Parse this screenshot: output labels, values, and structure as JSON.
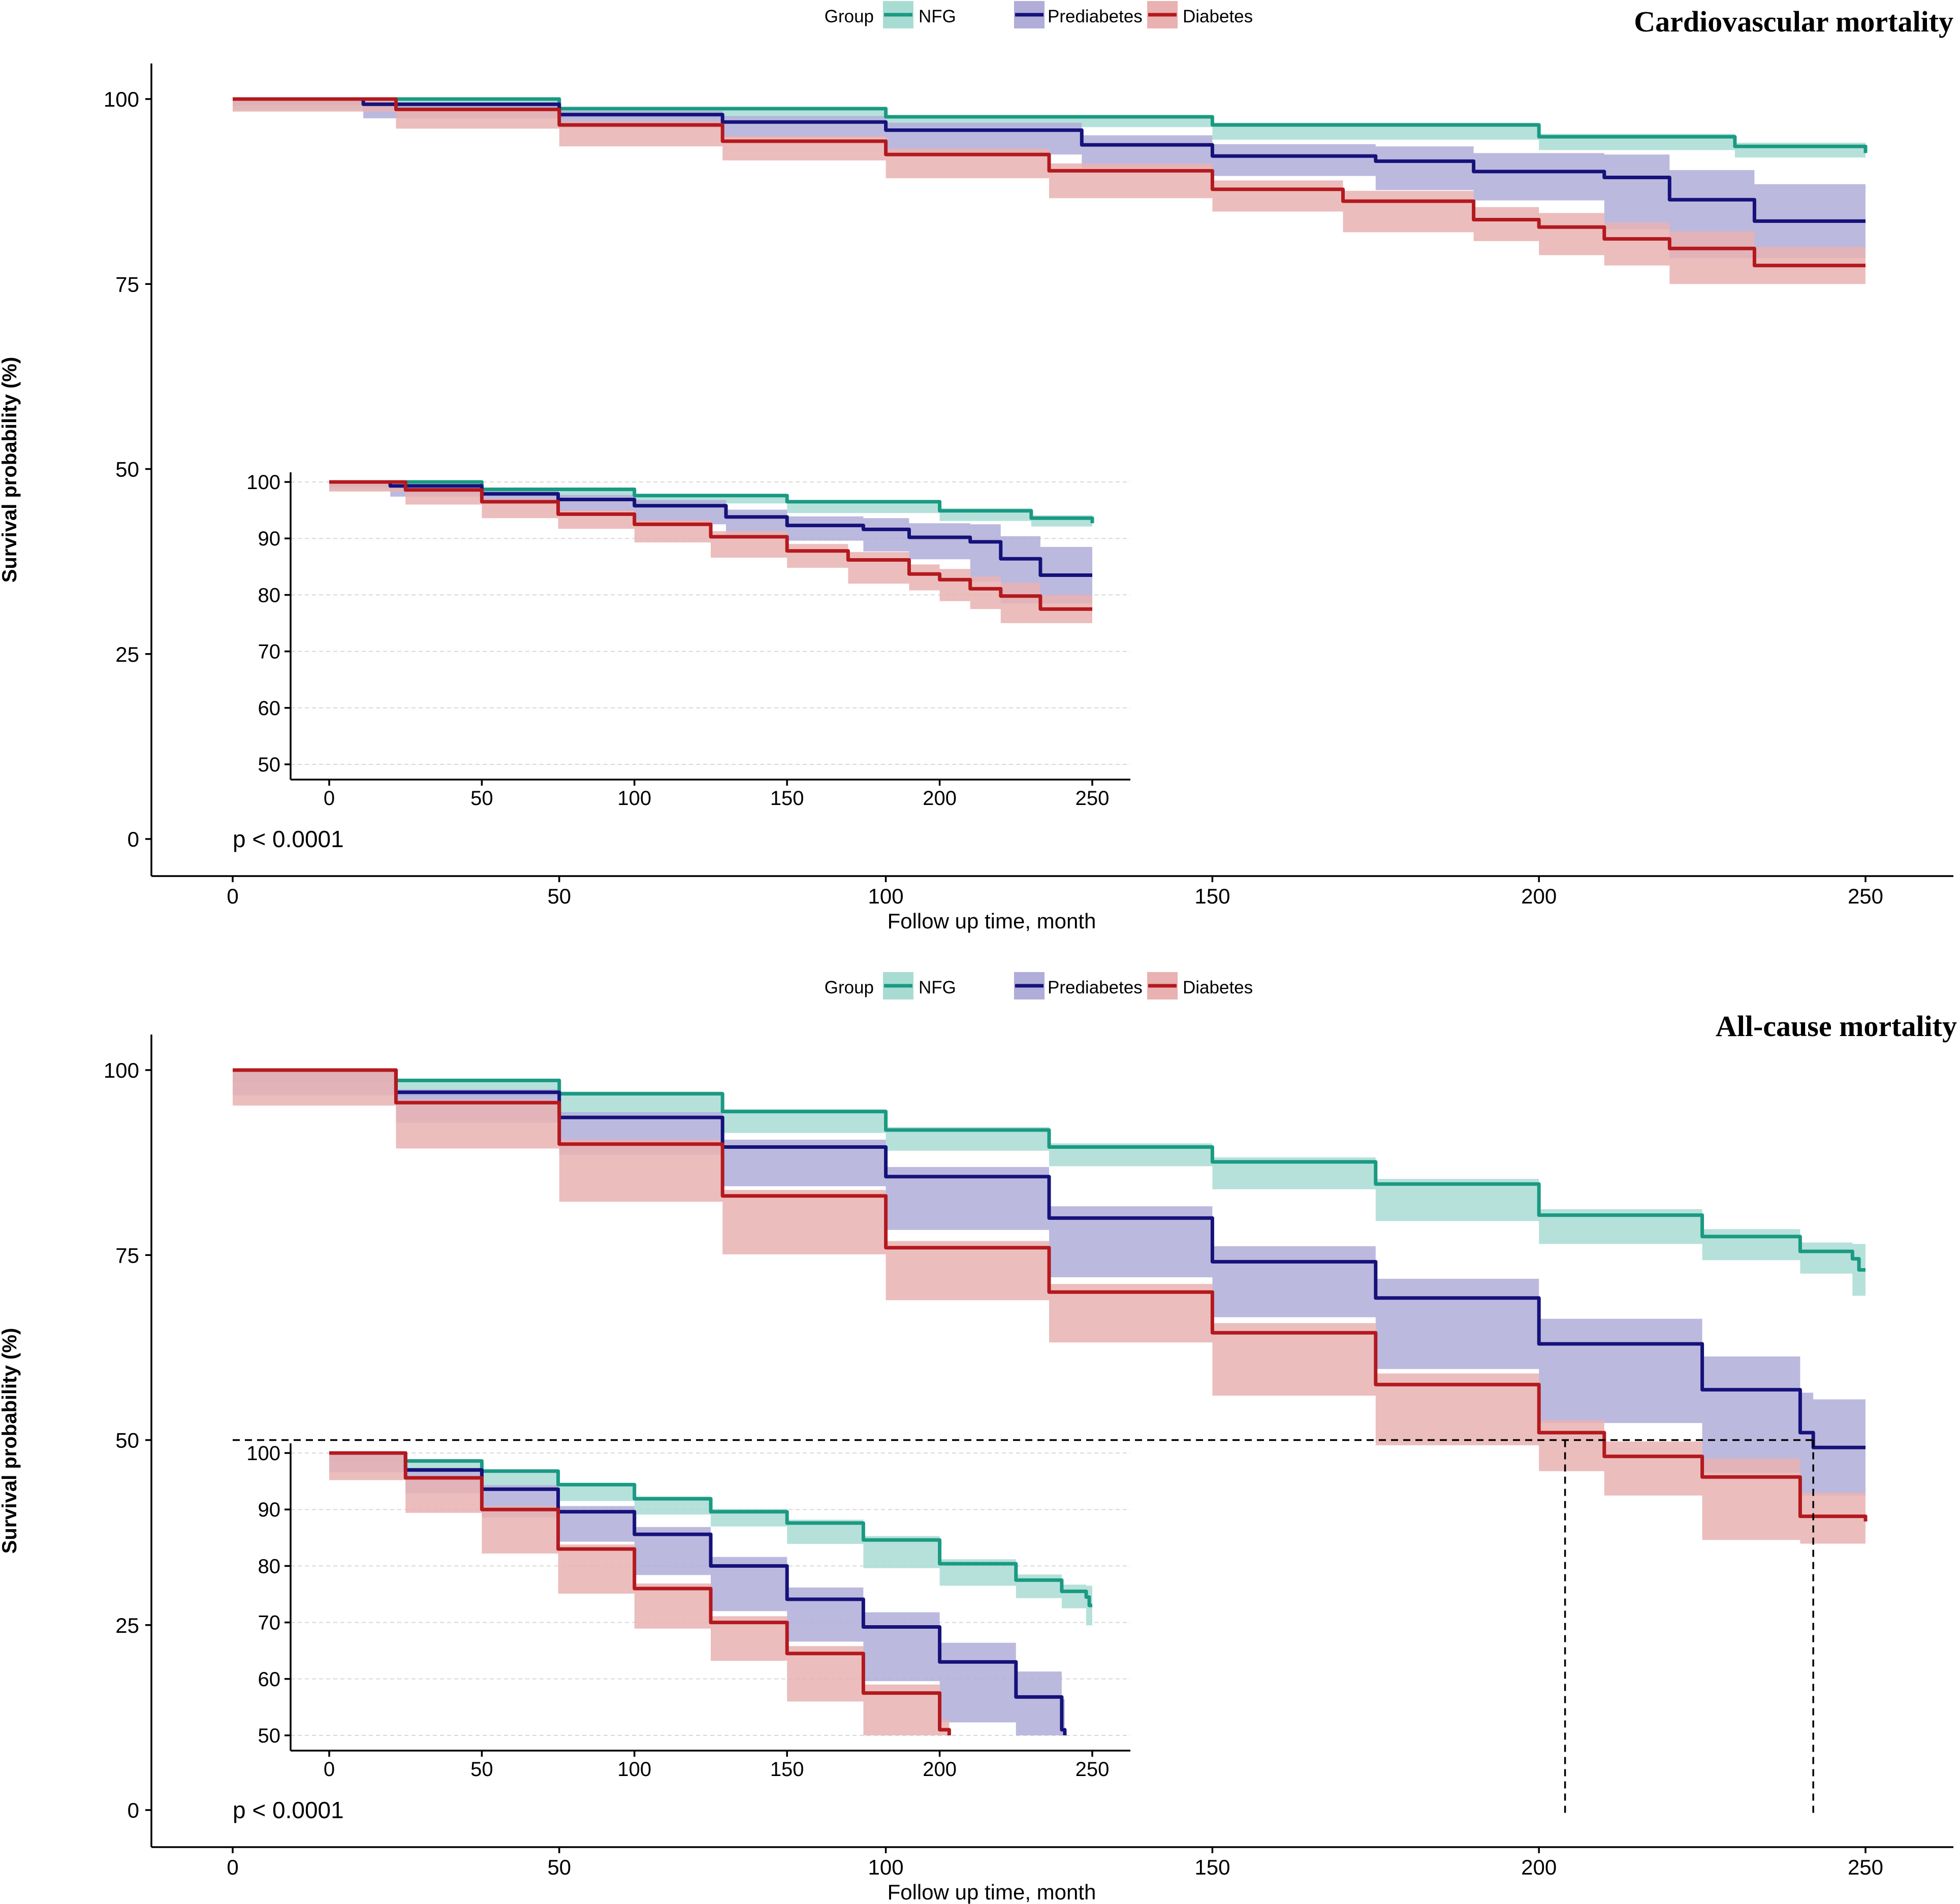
{
  "colors": {
    "NFG": "#1a9a82",
    "Prediabetes": "#16127a",
    "Diabetes": "#b3191e",
    "NFG_band": "#a8dcd3",
    "Prediabetes_band": "#b0add9",
    "Diabetes_band": "#e9b1b1"
  },
  "chart_data": [
    {
      "type": "line",
      "title": "Cardiovascular mortality",
      "xlabel": "Follow up time, month",
      "ylabel": "Survival probability (%)",
      "xlim": [
        0,
        250
      ],
      "ylim": [
        0,
        100
      ],
      "xticks": [
        0,
        50,
        100,
        150,
        200,
        250
      ],
      "yticks": [
        0,
        25,
        50,
        75,
        100
      ],
      "legend_title": "Group",
      "legend": [
        "NFG",
        "Prediabetes",
        "Diabetes"
      ],
      "legend_position": "top-center",
      "pvalue": "p < 0.0001",
      "series": [
        {
          "name": "NFG",
          "x": [
            0,
            50,
            100,
            150,
            200,
            230,
            250
          ],
          "y": [
            100,
            98.7,
            97.6,
            96.5,
            94.9,
            93.6,
            92.7
          ],
          "lower": [
            100,
            98.5,
            97.4,
            96.2,
            94.5,
            93.1,
            92.1
          ],
          "upper": [
            100,
            98.9,
            97.8,
            96.8,
            95.3,
            94.1,
            93.3
          ]
        },
        {
          "name": "Prediabetes",
          "x": [
            0,
            20,
            50,
            75,
            100,
            130,
            150,
            175,
            190,
            210,
            220,
            233,
            250
          ],
          "y": [
            100,
            99.3,
            97.9,
            96.9,
            95.8,
            93.8,
            92.3,
            91.6,
            90.2,
            89.4,
            86.4,
            83.5,
            83.5
          ],
          "lower": [
            100,
            99.1,
            97.4,
            96.1,
            94.8,
            92.5,
            90.7,
            89.6,
            87.7,
            86.3,
            82.4,
            78.5,
            78.5
          ],
          "upper": [
            100,
            99.5,
            98.4,
            97.7,
            96.8,
            95.1,
            93.9,
            93.6,
            92.7,
            92.5,
            90.4,
            88.5,
            88.5
          ]
        },
        {
          "name": "Diabetes",
          "x": [
            0,
            25,
            50,
            75,
            100,
            125,
            150,
            170,
            190,
            200,
            210,
            220,
            233,
            250
          ],
          "y": [
            100,
            98.6,
            96.5,
            94.3,
            92.5,
            90.3,
            87.8,
            86.2,
            83.7,
            82.7,
            81.1,
            79.8,
            77.5,
            77.5
          ],
          "lower": [
            100,
            98.3,
            96.0,
            93.6,
            91.7,
            89.3,
            86.6,
            84.8,
            82.0,
            80.8,
            78.9,
            77.5,
            75.0,
            75.0
          ],
          "upper": [
            100,
            98.9,
            97.0,
            95.0,
            93.3,
            91.3,
            89.0,
            87.6,
            85.4,
            84.6,
            83.3,
            82.1,
            80.0,
            80.0
          ]
        }
      ],
      "inset": {
        "xlim": [
          0,
          250
        ],
        "ylim": [
          50,
          100
        ],
        "xticks": [
          0,
          50,
          100,
          150,
          200,
          250
        ],
        "yticks": [
          50,
          60,
          70,
          80,
          90,
          100
        ]
      }
    },
    {
      "type": "line",
      "title": "All-cause mortality",
      "xlabel": "Follow up time, month",
      "ylabel": "Survival probability (%)",
      "xlim": [
        0,
        250
      ],
      "ylim": [
        0,
        100
      ],
      "xticks": [
        0,
        50,
        100,
        150,
        200,
        250
      ],
      "yticks": [
        0,
        25,
        50,
        75,
        100
      ],
      "legend_title": "Group",
      "legend": [
        "NFG",
        "Prediabetes",
        "Diabetes"
      ],
      "legend_position": "top-center",
      "pvalue": "p < 0.0001",
      "median_survival": {
        "Diabetes": 204,
        "Prediabetes": 242
      },
      "series": [
        {
          "name": "NFG",
          "x": [
            0,
            25,
            50,
            75,
            100,
            125,
            150,
            175,
            200,
            225,
            240,
            248,
            249,
            250
          ],
          "y": [
            100,
            98.6,
            96.8,
            94.4,
            91.9,
            89.6,
            87.6,
            84.6,
            80.4,
            77.5,
            75.5,
            74.5,
            73.0,
            73.0
          ],
          "lower": [
            100,
            98.4,
            96.5,
            94.1,
            91.5,
            89.1,
            87.0,
            83.9,
            79.6,
            76.5,
            74.3,
            72.5,
            69.5,
            69.5
          ],
          "upper": [
            100,
            98.8,
            97.1,
            94.7,
            92.3,
            90.1,
            88.2,
            85.3,
            81.2,
            78.5,
            76.7,
            76.5,
            76.5,
            76.5
          ]
        },
        {
          "name": "Prediabetes",
          "x": [
            0,
            25,
            50,
            75,
            100,
            125,
            150,
            175,
            200,
            225,
            240,
            242,
            250
          ],
          "y": [
            100,
            97.0,
            93.6,
            89.6,
            85.6,
            80.0,
            74.1,
            69.2,
            63.0,
            56.8,
            51.0,
            49.0,
            49.0
          ],
          "lower": [
            100,
            96.6,
            92.9,
            88.6,
            84.3,
            78.4,
            72.0,
            66.6,
            59.6,
            52.3,
            45.6,
            42.5,
            42.5
          ],
          "upper": [
            100,
            97.4,
            94.3,
            90.6,
            86.9,
            81.6,
            76.2,
            71.8,
            66.4,
            61.3,
            56.4,
            55.5,
            55.5
          ]
        },
        {
          "name": "Diabetes",
          "x": [
            0,
            25,
            50,
            75,
            100,
            125,
            150,
            175,
            200,
            210,
            225,
            240,
            250
          ],
          "y": [
            100,
            95.6,
            90.0,
            83.0,
            76.0,
            70.0,
            64.5,
            57.5,
            51.0,
            47.8,
            45.0,
            39.7,
            39.0
          ],
          "lower": [
            100,
            95.2,
            89.4,
            82.2,
            75.1,
            68.9,
            63.2,
            56.0,
            49.3,
            45.8,
            42.5,
            36.5,
            36.0
          ],
          "upper": [
            100,
            96.0,
            90.6,
            83.8,
            76.9,
            71.1,
            65.8,
            59.0,
            52.7,
            49.8,
            47.5,
            42.9,
            42.0
          ]
        }
      ],
      "inset": {
        "xlim": [
          0,
          250
        ],
        "ylim": [
          50,
          100
        ],
        "xticks": [
          0,
          50,
          100,
          150,
          200,
          250
        ],
        "yticks": [
          50,
          60,
          70,
          80,
          90,
          100
        ]
      }
    }
  ]
}
